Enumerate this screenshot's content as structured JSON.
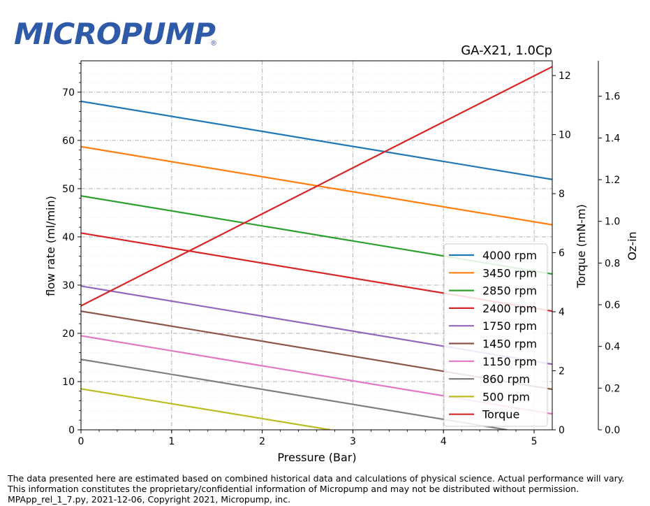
{
  "brand": {
    "logo_text": "MICROPUMP",
    "registered_mark": "®",
    "color": "#2f5aa8"
  },
  "chart_data": {
    "type": "line",
    "title": "GA-X21,  1.0Cp",
    "xlabel": "Pressure (Bar)",
    "ylabel": "flow rate (ml/min)",
    "y2label": "Torque (mN-m)",
    "y3label": "Oz-in",
    "xlim": [
      0,
      5.2
    ],
    "ylim": [
      0,
      76.5
    ],
    "y2lim": [
      0,
      12.5
    ],
    "y3lim": [
      0,
      1.77
    ],
    "xticks": [
      "0",
      "1",
      "2",
      "3",
      "4",
      "5"
    ],
    "yticks": [
      "0",
      "10",
      "20",
      "30",
      "40",
      "50",
      "60",
      "70"
    ],
    "y2ticks": [
      "0",
      "2",
      "4",
      "6",
      "8",
      "10",
      "12"
    ],
    "y3ticks": [
      "0.0",
      "0.2",
      "0.4",
      "0.6",
      "0.8",
      "1.0",
      "1.2",
      "1.4",
      "1.6"
    ],
    "grid": true,
    "legend_position": "lower-right",
    "series": [
      {
        "name": "4000 rpm",
        "color": "#1f77b4",
        "axis": "left",
        "x": [
          0,
          5.2
        ],
        "y": [
          68.1,
          51.9
        ]
      },
      {
        "name": "3450 rpm",
        "color": "#ff7f0e",
        "axis": "left",
        "x": [
          0,
          5.2
        ],
        "y": [
          58.7,
          42.5
        ]
      },
      {
        "name": "2850 rpm",
        "color": "#2ca02c",
        "axis": "left",
        "x": [
          0,
          5.2
        ],
        "y": [
          48.5,
          32.3
        ]
      },
      {
        "name": "2400 rpm",
        "color": "#d62728",
        "axis": "left",
        "x": [
          0,
          5.2
        ],
        "y": [
          40.8,
          24.6
        ]
      },
      {
        "name": "1750 rpm",
        "color": "#9467bd",
        "axis": "left",
        "x": [
          0,
          5.2
        ],
        "y": [
          29.8,
          13.6
        ]
      },
      {
        "name": "1450 rpm",
        "color": "#8c564b",
        "axis": "left",
        "x": [
          0,
          5.2
        ],
        "y": [
          24.6,
          8.4
        ]
      },
      {
        "name": "1150 rpm",
        "color": "#e377c2",
        "axis": "left",
        "x": [
          0,
          5.2
        ],
        "y": [
          19.5,
          3.3
        ]
      },
      {
        "name": "860 rpm",
        "color": "#7f7f7f",
        "axis": "left",
        "x": [
          0,
          4.7
        ],
        "y": [
          14.6,
          0
        ]
      },
      {
        "name": "500 rpm",
        "color": "#bcbd22",
        "axis": "left",
        "x": [
          0,
          2.75
        ],
        "y": [
          8.5,
          0
        ]
      },
      {
        "name": "Torque",
        "color": "#d62728",
        "axis": "right",
        "x": [
          0,
          5.2
        ],
        "y": [
          4.2,
          12.3
        ]
      }
    ]
  },
  "footer": {
    "line1": "The data presented here are estimated based on combined historical data and calculations of physical science.  Actual performance will vary.",
    "line2": "This information constitutes the proprietary/confidential information of Micropump and may not be distributed without permission.",
    "line3": "MPApp_rel_1_7.py, 2021-12-06, Copyright 2021, Micropump, inc."
  }
}
